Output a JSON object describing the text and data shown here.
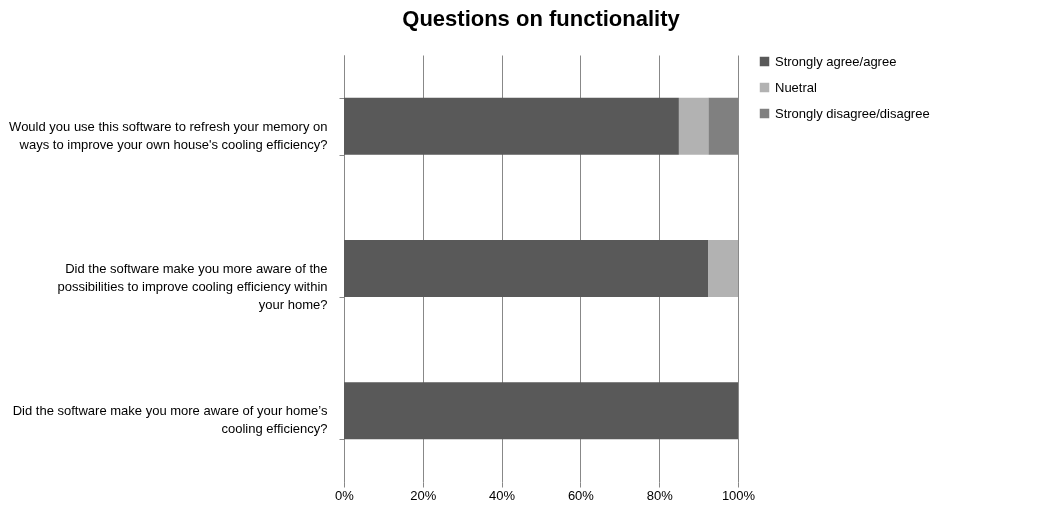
{
  "chart_data": {
    "type": "bar",
    "title": "Questions on functionality",
    "orientation": "horizontal",
    "stacked": true,
    "categories": [
      "Would you use this software to refresh your memory on ways to improve your own house's cooling efficiency?",
      "Did the software make you more aware of the possibilities to improve cooling efficiency within your home?",
      "Did the software make you more aware of your home’s cooling efficiency?"
    ],
    "series": [
      {
        "name": "Strongly agree/agree",
        "color": "#595959",
        "values": [
          85,
          92.5,
          100
        ]
      },
      {
        "name": "Nuetral",
        "color": "#b2b2b2",
        "values": [
          7.5,
          7.5,
          0
        ]
      },
      {
        "name": "Strongly disagree/disagree",
        "color": "#808080",
        "values": [
          7.5,
          0,
          0
        ]
      }
    ],
    "xlim": [
      0,
      100
    ],
    "xticks": [
      {
        "value": 0,
        "label": "0%"
      },
      {
        "value": 20,
        "label": "20%"
      },
      {
        "value": 40,
        "label": "40%"
      },
      {
        "value": 60,
        "label": "60%"
      },
      {
        "value": 80,
        "label": "80%"
      },
      {
        "value": 100,
        "label": "100%"
      }
    ],
    "grid": "x",
    "legend": "right"
  }
}
